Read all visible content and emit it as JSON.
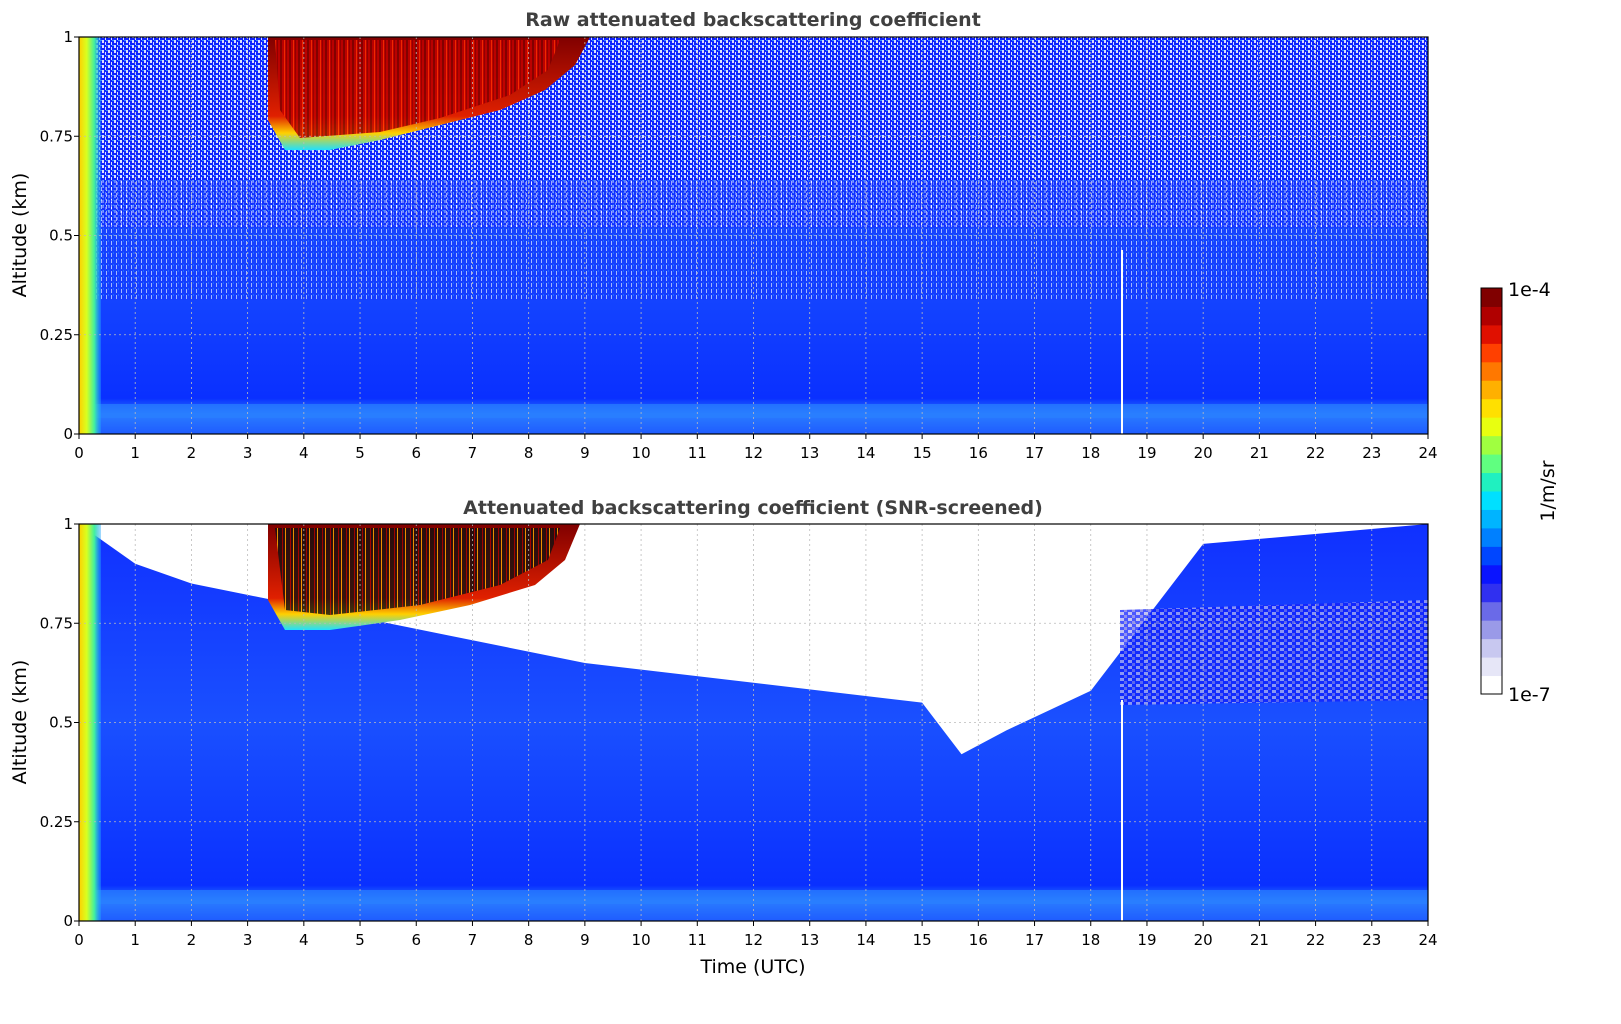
{
  "chart_data": [
    {
      "type": "heatmap",
      "title": "Raw attenuated backscattering coefficient",
      "xlabel": "",
      "ylabel": "Altitude (km)",
      "xlim": [
        0,
        24
      ],
      "ylim": [
        0,
        1
      ],
      "xticks": [
        "0",
        "1",
        "2",
        "3",
        "4",
        "5",
        "6",
        "7",
        "8",
        "9",
        "10",
        "11",
        "12",
        "13",
        "14",
        "15",
        "16",
        "17",
        "18",
        "19",
        "20",
        "21",
        "22",
        "23",
        "24"
      ],
      "yticks": [
        "0",
        "0.25",
        "0.5",
        "0.75",
        "1"
      ],
      "grid": true,
      "features": [
        {
          "label": "near-surface aerosol layer",
          "x": [
            0,
            24
          ],
          "y": [
            0.02,
            0.08
          ]
        },
        {
          "label": "high return near range, early hours",
          "x": [
            0,
            0.4
          ],
          "y": [
            0,
            1
          ]
        },
        {
          "label": "cloud layer",
          "x": [
            3.4,
            8.8
          ],
          "y": [
            0.72,
            1
          ]
        }
      ]
    },
    {
      "type": "heatmap",
      "title": "Attenuated backscattering coefficient (SNR-screened)",
      "xlabel": "Time (UTC)",
      "ylabel": "Altitude (km)",
      "xlim": [
        0,
        24
      ],
      "ylim": [
        0,
        1
      ],
      "xticks": [
        "0",
        "1",
        "2",
        "3",
        "4",
        "5",
        "6",
        "7",
        "8",
        "9",
        "10",
        "11",
        "12",
        "13",
        "14",
        "15",
        "16",
        "17",
        "18",
        "19",
        "20",
        "21",
        "22",
        "23",
        "24"
      ],
      "yticks": [
        "0",
        "0.25",
        "0.5",
        "0.75",
        "1"
      ],
      "grid": true,
      "screened_top_km": [
        {
          "time": 1,
          "top": 0.9
        },
        {
          "time": 2,
          "top": 0.85
        },
        {
          "time": 9,
          "top": 0.65
        },
        {
          "time": 12,
          "top": 0.6
        },
        {
          "time": 15,
          "top": 0.55
        },
        {
          "time": 15.7,
          "top": 0.42
        },
        {
          "time": 16.5,
          "top": 0.48
        },
        {
          "time": 18,
          "top": 0.58
        },
        {
          "time": 20,
          "top": 0.95
        },
        {
          "time": 24,
          "top": 1.0
        }
      ]
    }
  ],
  "colorbar": {
    "label": "1/m/sr",
    "max_label": "1e-4",
    "min_label": "1e-7",
    "scale": "log",
    "colors": [
      "#ffffff",
      "#e6e6f7",
      "#c8c8f0",
      "#9a9ae8",
      "#6a6ae8",
      "#3030f0",
      "#0a14ff",
      "#0046ff",
      "#0080ff",
      "#00b4ff",
      "#00e0ff",
      "#20f0c0",
      "#60ff80",
      "#a0ff40",
      "#e8ff10",
      "#ffe000",
      "#ffb000",
      "#ff7800",
      "#ff4000",
      "#e01000",
      "#b00000",
      "#800000"
    ]
  }
}
